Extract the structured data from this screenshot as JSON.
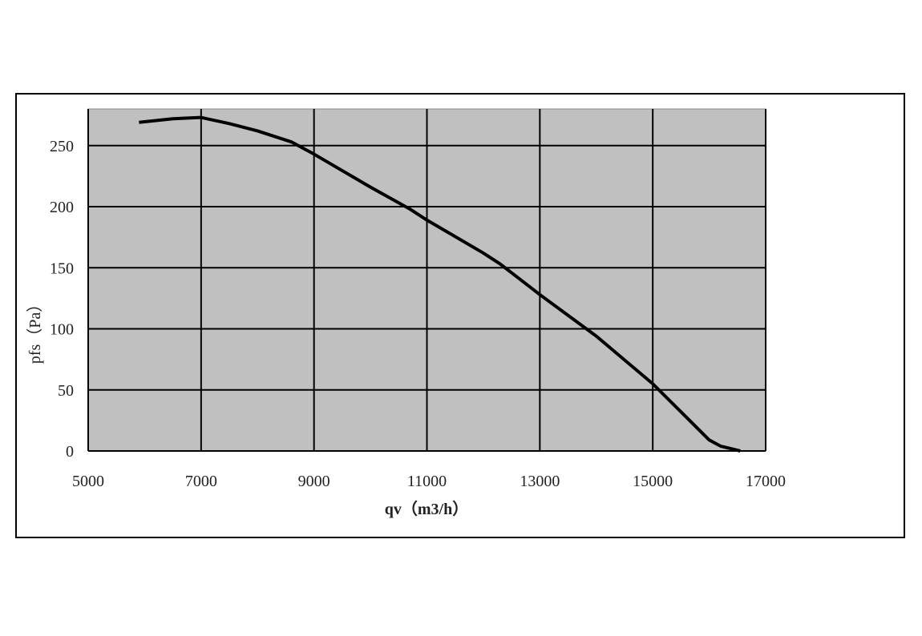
{
  "chart_data": {
    "type": "line",
    "xlabel": "qv（m3/h）",
    "ylabel": "pfs（Pa）",
    "x": [
      5900,
      6500,
      7000,
      7500,
      8000,
      8600,
      9000,
      10000,
      10700,
      11000,
      12000,
      12300,
      13000,
      14000,
      15000,
      15500,
      16000,
      16200,
      16550
    ],
    "series": [
      {
        "color": "#000000",
        "values": [
          269,
          272,
          273,
          268,
          262,
          253,
          243,
          216,
          198,
          189,
          162,
          153,
          128,
          94,
          55,
          32,
          9,
          4,
          0
        ]
      }
    ],
    "xlim": [
      5000,
      17000
    ],
    "xticks": [
      5000,
      7000,
      9000,
      11000,
      13000,
      15000,
      17000
    ],
    "ylim": [
      0,
      280
    ],
    "yticks": [
      0,
      50,
      100,
      150,
      200,
      250
    ],
    "grid": true,
    "background": "#c0c0c0"
  }
}
